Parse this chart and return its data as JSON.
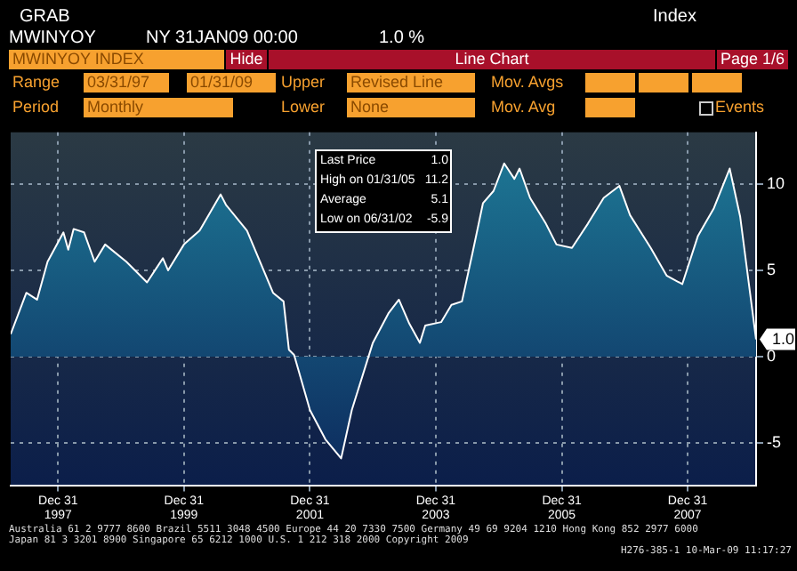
{
  "chart_data": {
    "type": "area",
    "x": [
      "1997-03-31",
      "1997-06-30",
      "1997-08-31",
      "1997-10-31",
      "1998-01-31",
      "1998-02-28",
      "1998-03-31",
      "1998-05-31",
      "1998-07-31",
      "1998-09-30",
      "1999-01-31",
      "1999-05-31",
      "1999-08-31",
      "1999-09-30",
      "1999-12-31",
      "2000-03-31",
      "2000-07-31",
      "2000-08-31",
      "2000-12-31",
      "2001-05-31",
      "2001-07-31",
      "2001-08-31",
      "2001-09-30",
      "2001-12-31",
      "2002-03-31",
      "2002-06-30",
      "2002-08-31",
      "2002-12-31",
      "2003-03-31",
      "2003-05-31",
      "2003-07-31",
      "2003-09-30",
      "2003-10-31",
      "2004-01-31",
      "2004-03-31",
      "2004-05-31",
      "2004-07-31",
      "2004-09-30",
      "2004-11-30",
      "2005-01-31",
      "2005-03-31",
      "2005-04-30",
      "2005-06-30",
      "2005-09-30",
      "2005-11-30",
      "2006-02-28",
      "2006-05-31",
      "2006-08-31",
      "2006-11-30",
      "2007-01-31",
      "2007-05-31",
      "2007-08-31",
      "2007-11-30",
      "2008-02-29",
      "2008-05-31",
      "2008-08-31",
      "2008-10-31",
      "2009-01-31"
    ],
    "values": [
      1.3,
      3.7,
      3.3,
      5.5,
      7.2,
      6.2,
      7.4,
      7.2,
      5.5,
      6.5,
      5.5,
      4.3,
      5.7,
      5.0,
      6.5,
      7.3,
      9.4,
      8.8,
      7.3,
      3.7,
      3.2,
      0.4,
      0.1,
      -3.1,
      -4.8,
      -5.9,
      -3.1,
      0.8,
      2.5,
      3.3,
      1.9,
      0.8,
      1.8,
      2.0,
      3.0,
      3.2,
      6.0,
      8.9,
      9.6,
      11.2,
      10.3,
      10.9,
      9.2,
      7.7,
      6.5,
      6.3,
      7.7,
      9.2,
      9.9,
      8.2,
      6.3,
      4.7,
      4.2,
      7.0,
      8.6,
      10.9,
      8.1,
      1.0
    ],
    "color": "#1f7f9a",
    "xlim": [
      "1997-03-31",
      "2009-01-31"
    ],
    "xticks": [
      {
        "value": "1997-12-31",
        "label": "Dec 31\n1997"
      },
      {
        "value": "1999-12-31",
        "label": "Dec 31\n1999"
      },
      {
        "value": "2001-12-31",
        "label": "Dec 31\n2001"
      },
      {
        "value": "2003-12-31",
        "label": "Dec 31\n2003"
      },
      {
        "value": "2005-12-31",
        "label": "Dec 31\n2005"
      },
      {
        "value": "2007-12-31",
        "label": "Dec 31\n2007"
      }
    ],
    "ylim": [
      -7.5,
      13
    ],
    "yticks": [
      -5,
      0,
      5,
      10
    ],
    "grid": true,
    "legend": false,
    "line_style": "solid",
    "annotations": [
      "GRAB",
      "MWINYOY",
      "NY 31JAN09 00:00",
      "1.0 %",
      "Index",
      "MWINYOY INDEX",
      "Hide",
      "Line Chart",
      "Page 1/6",
      "Range",
      "03/31/97",
      "01/31/09",
      "Upper",
      "Revised Line",
      "Mov. Avgs",
      "Period",
      "Monthly",
      "Lower",
      "None",
      "Mov. Avg",
      "Events",
      "Last Price",
      "1.0",
      "High on 01/31/05",
      "11.2",
      "Average",
      "5.1",
      "Low on 06/31/02",
      "-5.9",
      "Australia 61 2 9777 8600 Brazil 5511 3048 4500 Europe 44 20 7330 7500 Germany 49 69 9204 1210 Hong Kong 852 2977 6000",
      "Japan 81 3 3201 8900 Singapore 65 6212 1000 U.S. 1 212 318 2000 Copyright 2009",
      "H276-385-1 10-Mar-09 11:17:27",
      {
        "text": "1.0",
        "x": "2009-01-31",
        "y": 1.0
      }
    ]
  }
}
